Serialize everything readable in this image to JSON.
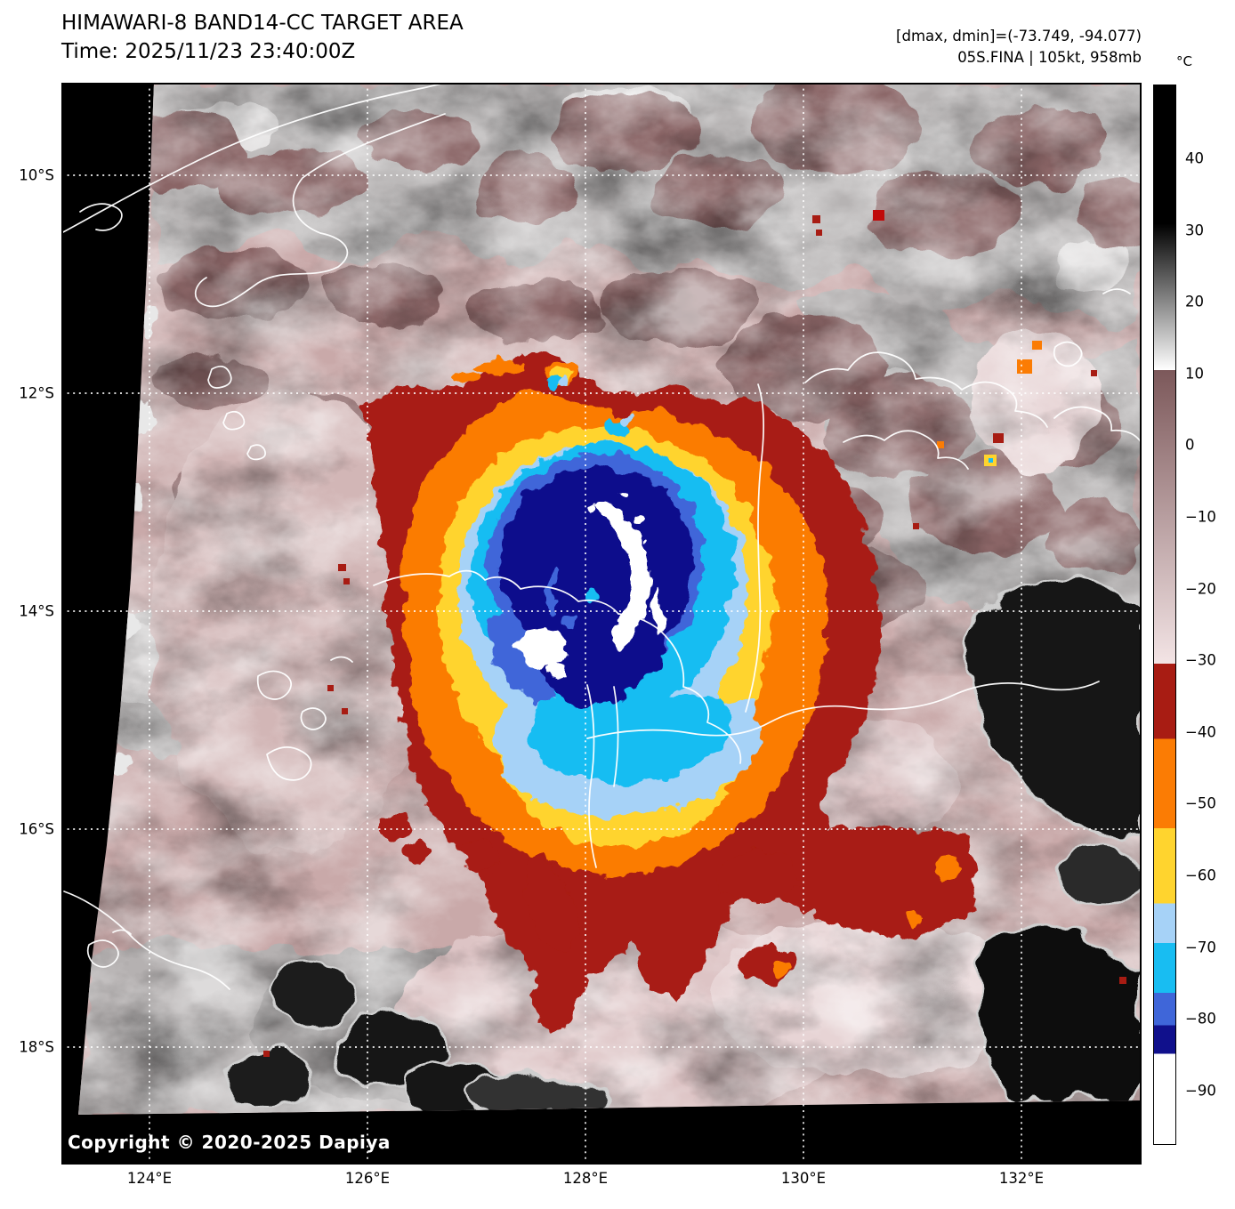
{
  "header": {
    "title": "HIMAWARI-8 BAND14-CC TARGET AREA",
    "subtitle": "Time: 2025/11/23 23:40:00Z",
    "stats_line1": "[dmax, dmin]=(-73.749, -94.077)",
    "stats_line2": "05S.FINA | 105kt, 958mb"
  },
  "map": {
    "copyright": "Copyright © 2020-2025 Dapiya",
    "x_axis": {
      "ticks": [
        {
          "label": "124°E",
          "value": 124
        },
        {
          "label": "126°E",
          "value": 126
        },
        {
          "label": "128°E",
          "value": 128
        },
        {
          "label": "130°E",
          "value": 130
        },
        {
          "label": "132°E",
          "value": 132
        }
      ]
    },
    "y_axis": {
      "ticks": [
        {
          "label": "10°S",
          "value": 10
        },
        {
          "label": "12°S",
          "value": 12
        },
        {
          "label": "14°S",
          "value": 14
        },
        {
          "label": "16°S",
          "value": 16
        },
        {
          "label": "18°S",
          "value": 18
        }
      ]
    }
  },
  "colorbar": {
    "unit": "°C",
    "domain": [
      50.3,
      -97.6
    ],
    "ticks": [
      {
        "label": "40",
        "value": 40
      },
      {
        "label": "30",
        "value": 30
      },
      {
        "label": "20",
        "value": 20
      },
      {
        "label": "10",
        "value": 10
      },
      {
        "label": "0",
        "value": 0
      },
      {
        "label": "−10",
        "value": -10
      },
      {
        "label": "−20",
        "value": -20
      },
      {
        "label": "−30",
        "value": -30
      },
      {
        "label": "−40",
        "value": -40
      },
      {
        "label": "−50",
        "value": -50
      },
      {
        "label": "−60",
        "value": -60
      },
      {
        "label": "−70",
        "value": -70
      },
      {
        "label": "−80",
        "value": -80
      },
      {
        "label": "−90",
        "value": -90
      }
    ],
    "bands": [
      {
        "from": 50.3,
        "to": 31,
        "color": "#000000"
      },
      {
        "from": 31,
        "to": 10.5,
        "color_start": "#000000",
        "color_end": "#ffffff"
      },
      {
        "from": 10.5,
        "to": -30.5,
        "color_start": "#7c585a",
        "color_end": "#f3e4e5"
      },
      {
        "from": -30.5,
        "to": -41,
        "color": "#a81c13"
      },
      {
        "from": -41,
        "to": -53.5,
        "color": "#fb7c04"
      },
      {
        "from": -53.5,
        "to": -64,
        "color": "#ffd42e"
      },
      {
        "from": -64,
        "to": -69.5,
        "color": "#a6d2f7"
      },
      {
        "from": -69.5,
        "to": -76.5,
        "color": "#18bdf2"
      },
      {
        "from": -76.5,
        "to": -81,
        "color": "#3f66d9"
      },
      {
        "from": -81,
        "to": -85,
        "color": "#10108c"
      },
      {
        "from": -85,
        "to": -97.6,
        "color": "#ffffff"
      }
    ]
  },
  "palette": {
    "page_background": "#ffffff",
    "text": "#000000",
    "map_background": "#000000",
    "haze_pink": "#c9a9a9",
    "haze_pink_light": "#e6d3d4",
    "cloud_mauve": "#8a6566",
    "cloud_grey": "#b6b3b3",
    "cloud_grey_light": "#d8d6d6",
    "cloud_black": "#121212",
    "ring_red": "#a81c13",
    "ring_orange": "#fb7c04",
    "ring_yellow": "#ffd42e",
    "ring_pale_blue": "#a6d2f7",
    "ring_cyan": "#18bdf2",
    "ring_royal_blue": "#3f66d9",
    "ring_navy": "#10108c",
    "eye_white": "#ffffff",
    "coastline": "#ffffff",
    "gridline": "#ffffff"
  }
}
